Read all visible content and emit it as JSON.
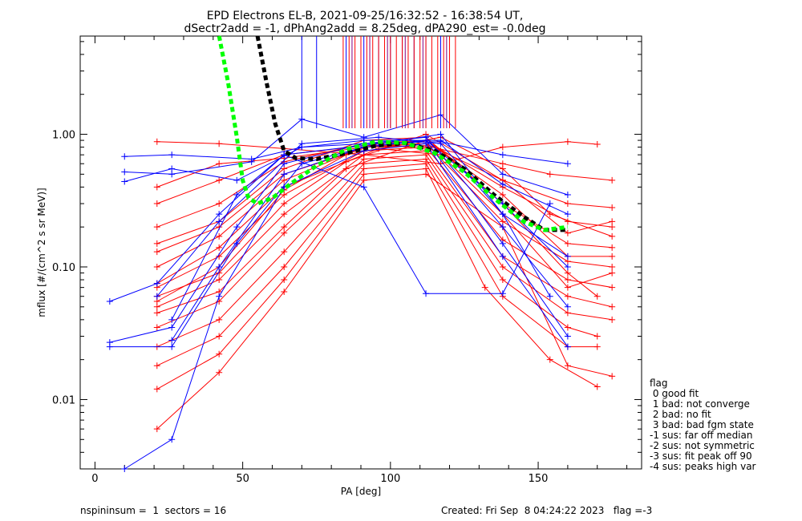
{
  "chart_data": {
    "type": "line",
    "title": "EPD Electrons EL-B, 2021-09-25/16:32:52 - 16:38:54 UT,",
    "subtitle": "dSectr2add = -1, dPhAng2add = 8.25deg, dPA290_est=  -0.0deg",
    "xlabel": "PA [deg]",
    "ylabel": "mflux [#/(cm^2 s sr MeV)]",
    "xlim": [
      -5,
      185
    ],
    "ylim": [
      0.003,
      5.5
    ],
    "yscale": "log",
    "x_ticks": [
      0,
      50,
      100,
      150
    ],
    "x_tick_labels": [
      "0",
      "50",
      "100",
      "150"
    ],
    "y_ticks": [
      0.01,
      0.1,
      1.0
    ],
    "y_tick_labels": [
      "0.01",
      "0.10",
      "1.00"
    ],
    "pa_bins": [
      5,
      10,
      21,
      26,
      42,
      48,
      53,
      64,
      70,
      85,
      91,
      96,
      112,
      117,
      132,
      138,
      154,
      160,
      170,
      175
    ],
    "series": [
      {
        "color": "#ff0000",
        "curves": [
          [
            [
              21,
              0.88
            ],
            [
              42,
              0.85
            ],
            [
              64,
              0.78
            ],
            [
              91,
              0.7
            ],
            [
              117,
              0.6
            ],
            [
              138,
              0.8
            ],
            [
              160,
              0.88
            ],
            [
              170,
              0.84
            ]
          ],
          [
            [
              21,
              0.3
            ],
            [
              42,
              0.45
            ],
            [
              64,
              0.7
            ],
            [
              91,
              0.82
            ],
            [
              112,
              0.85
            ],
            [
              138,
              0.45
            ],
            [
              160,
              0.3
            ],
            [
              175,
              0.28
            ]
          ],
          [
            [
              21,
              0.2
            ],
            [
              42,
              0.3
            ],
            [
              64,
              0.62
            ],
            [
              91,
              0.85
            ],
            [
              112,
              0.9
            ],
            [
              138,
              0.4
            ],
            [
              160,
              0.22
            ],
            [
              175,
              0.2
            ]
          ],
          [
            [
              21,
              0.15
            ],
            [
              42,
              0.22
            ],
            [
              64,
              0.55
            ],
            [
              91,
              0.9
            ],
            [
              112,
              0.95
            ],
            [
              138,
              0.3
            ],
            [
              160,
              0.15
            ],
            [
              175,
              0.14
            ]
          ],
          [
            [
              21,
              0.1
            ],
            [
              42,
              0.17
            ],
            [
              64,
              0.45
            ],
            [
              91,
              0.8
            ],
            [
              112,
              0.85
            ],
            [
              138,
              0.22
            ],
            [
              160,
              0.11
            ],
            [
              175,
              0.1
            ]
          ],
          [
            [
              21,
              0.07
            ],
            [
              42,
              0.12
            ],
            [
              64,
              0.35
            ],
            [
              91,
              0.75
            ],
            [
              112,
              0.8
            ],
            [
              138,
              0.16
            ],
            [
              160,
              0.08
            ],
            [
              175,
              0.07
            ]
          ],
          [
            [
              21,
              0.05
            ],
            [
              42,
              0.08
            ],
            [
              64,
              0.25
            ],
            [
              91,
              0.7
            ],
            [
              112,
              0.75
            ],
            [
              138,
              0.12
            ],
            [
              160,
              0.06
            ],
            [
              175,
              0.05
            ]
          ],
          [
            [
              21,
              0.035
            ],
            [
              42,
              0.055
            ],
            [
              64,
              0.18
            ],
            [
              91,
              0.65
            ],
            [
              112,
              0.7
            ],
            [
              138,
              0.1
            ],
            [
              160,
              0.045
            ],
            [
              175,
              0.04
            ]
          ],
          [
            [
              21,
              0.025
            ],
            [
              42,
              0.04
            ],
            [
              64,
              0.13
            ],
            [
              91,
              0.6
            ],
            [
              112,
              0.65
            ],
            [
              138,
              0.08
            ],
            [
              160,
              0.035
            ],
            [
              170,
              0.03
            ]
          ],
          [
            [
              21,
              0.018
            ],
            [
              42,
              0.03
            ],
            [
              64,
              0.1
            ],
            [
              91,
              0.55
            ],
            [
              112,
              0.6
            ],
            [
              138,
              0.06
            ],
            [
              160,
              0.025
            ],
            [
              170,
              0.025
            ]
          ],
          [
            [
              21,
              0.012
            ],
            [
              42,
              0.022
            ],
            [
              64,
              0.08
            ],
            [
              91,
              0.5
            ],
            [
              112,
              0.55
            ],
            [
              132,
              0.07
            ],
            [
              154,
              0.02
            ],
            [
              170,
              0.0125
            ]
          ],
          [
            [
              21,
              0.006
            ],
            [
              42,
              0.016
            ],
            [
              64,
              0.065
            ],
            [
              91,
              0.45
            ],
            [
              112,
              0.5
            ],
            [
              138,
              0.2
            ],
            [
              160,
              0.018
            ],
            [
              175,
              0.015
            ]
          ],
          [
            [
              21,
              0.045
            ],
            [
              42,
              0.065
            ],
            [
              64,
              0.2
            ],
            [
              85,
              0.55
            ],
            [
              112,
              0.9
            ],
            [
              138,
              0.35
            ],
            [
              160,
              0.12
            ],
            [
              175,
              0.12
            ]
          ],
          [
            [
              21,
              0.06
            ],
            [
              42,
              0.09
            ],
            [
              64,
              0.3
            ],
            [
              85,
              0.62
            ],
            [
              112,
              1.0
            ],
            [
              138,
              0.45
            ],
            [
              160,
              0.18
            ],
            [
              175,
              0.22
            ]
          ],
          [
            [
              21,
              0.055
            ],
            [
              42,
              0.1
            ],
            [
              64,
              0.38
            ],
            [
              85,
              0.7
            ],
            [
              117,
              0.95
            ],
            [
              138,
              0.55
            ],
            [
              154,
              0.25
            ],
            [
              175,
              0.17
            ]
          ],
          [
            [
              21,
              0.4
            ],
            [
              42,
              0.6
            ],
            [
              64,
              0.66
            ],
            [
              91,
              0.8
            ],
            [
              112,
              0.82
            ],
            [
              138,
              0.6
            ],
            [
              154,
              0.5
            ],
            [
              175,
              0.45
            ]
          ],
          [
            [
              21,
              0.13
            ],
            [
              42,
              0.2
            ],
            [
              64,
              0.5
            ],
            [
              96,
              0.85
            ],
            [
              117,
              0.75
            ],
            [
              138,
              0.3
            ],
            [
              160,
              0.09
            ],
            [
              170,
              0.06
            ]
          ],
          [
            [
              21,
              0.075
            ],
            [
              42,
              0.14
            ],
            [
              64,
              0.4
            ],
            [
              96,
              0.78
            ],
            [
              117,
              0.7
            ],
            [
              138,
              0.25
            ],
            [
              160,
              0.07
            ],
            [
              175,
              0.09
            ]
          ]
        ]
      },
      {
        "color": "#0000ff",
        "curves": [
          [
            [
              10,
              0.68
            ],
            [
              26,
              0.7
            ],
            [
              53,
              0.65
            ],
            [
              70,
              0.8
            ],
            [
              91,
              0.85
            ],
            [
              117,
              0.88
            ],
            [
              138,
              0.7
            ],
            [
              160,
              0.6
            ]
          ],
          [
            [
              10,
              0.52
            ],
            [
              26,
              0.5
            ],
            [
              53,
              0.62
            ],
            [
              70,
              1.3
            ],
            [
              91,
              0.95
            ],
            [
              117,
              1.4
            ],
            [
              138,
              0.5
            ],
            [
              160,
              0.35
            ]
          ],
          [
            [
              10,
              0.44
            ],
            [
              26,
              0.55
            ],
            [
              48,
              0.45
            ],
            [
              70,
              0.8
            ],
            [
              91,
              0.9
            ],
            [
              117,
              0.9
            ],
            [
              138,
              0.42
            ],
            [
              160,
              0.25
            ]
          ],
          [
            [
              5,
              0.055
            ],
            [
              21,
              0.075
            ],
            [
              42,
              0.25
            ],
            [
              64,
              0.7
            ],
            [
              96,
              0.85
            ],
            [
              117,
              1.0
            ],
            [
              138,
              0.25
            ],
            [
              154,
              0.06
            ]
          ],
          [
            [
              5,
              0.027
            ],
            [
              26,
              0.035
            ],
            [
              48,
              0.2
            ],
            [
              64,
              0.6
            ],
            [
              91,
              0.85
            ],
            [
              112,
              0.95
            ],
            [
              138,
              0.2
            ],
            [
              160,
              0.05
            ]
          ],
          [
            [
              5,
              0.025
            ],
            [
              26,
              0.025
            ],
            [
              48,
              0.15
            ],
            [
              70,
              0.6
            ],
            [
              91,
              0.8
            ],
            [
              112,
              0.9
            ],
            [
              138,
              0.15
            ],
            [
              160,
              0.03
            ]
          ],
          [
            [
              10,
              0.003
            ],
            [
              26,
              0.005
            ],
            [
              42,
              0.06
            ],
            [
              64,
              0.4
            ],
            [
              91,
              0.75
            ],
            [
              112,
              0.85
            ],
            [
              138,
              0.12
            ],
            [
              160,
              0.025
            ]
          ],
          [
            [
              26,
              0.028
            ],
            [
              42,
              0.1
            ],
            [
              64,
              0.5
            ],
            [
              91,
              0.8
            ],
            [
              112,
              0.9
            ],
            [
              138,
              0.3
            ],
            [
              160,
              0.1
            ]
          ],
          [
            [
              26,
              0.04
            ],
            [
              48,
              0.35
            ],
            [
              64,
              0.7
            ],
            [
              91,
              0.4
            ],
            [
              112,
              0.063
            ],
            [
              138,
              0.063
            ],
            [
              154,
              0.3
            ]
          ],
          [
            [
              21,
              0.06
            ],
            [
              42,
              0.22
            ],
            [
              70,
              0.85
            ],
            [
              96,
              0.95
            ],
            [
              117,
              0.85
            ],
            [
              138,
              0.25
            ],
            [
              160,
              0.12
            ]
          ]
        ]
      }
    ],
    "spikes": [
      {
        "color": "#0000ff",
        "pa": [
          70,
          75,
          85,
          91,
          96,
          100,
          104,
          108,
          112,
          117
        ]
      },
      {
        "color": "#ff0000",
        "pa": [
          84,
          86,
          88,
          90,
          92,
          94,
          96,
          98,
          100,
          102,
          104,
          106,
          108,
          110,
          112,
          114,
          116,
          118,
          120,
          122
        ]
      },
      {
        "color": "#800080",
        "pa": [
          87,
          93,
          99,
          105,
          111,
          119
        ]
      }
    ],
    "fit_curves": [
      {
        "color": "#000000",
        "style": "dashed",
        "points": [
          [
            55,
            5.5
          ],
          [
            58,
            2.5
          ],
          [
            61,
            1.2
          ],
          [
            64,
            0.75
          ],
          [
            68,
            0.66
          ],
          [
            75,
            0.65
          ],
          [
            85,
            0.72
          ],
          [
            95,
            0.82
          ],
          [
            105,
            0.86
          ],
          [
            115,
            0.75
          ],
          [
            125,
            0.55
          ],
          [
            135,
            0.35
          ],
          [
            145,
            0.24
          ],
          [
            152,
            0.19
          ],
          [
            160,
            0.19
          ]
        ]
      },
      {
        "color": "#00ff00",
        "style": "dashed",
        "points": [
          [
            42,
            5.5
          ],
          [
            45,
            2.5
          ],
          [
            48,
            0.95
          ],
          [
            50,
            0.45
          ],
          [
            52,
            0.33
          ],
          [
            55,
            0.3
          ],
          [
            60,
            0.33
          ],
          [
            66,
            0.42
          ],
          [
            75,
            0.58
          ],
          [
            85,
            0.77
          ],
          [
            95,
            0.88
          ],
          [
            105,
            0.86
          ],
          [
            115,
            0.72
          ],
          [
            125,
            0.52
          ],
          [
            135,
            0.33
          ],
          [
            145,
            0.22
          ],
          [
            152,
            0.19
          ],
          [
            160,
            0.2
          ]
        ]
      }
    ],
    "legend": {
      "position": "right",
      "title": "flag",
      "entries": [
        " 0 good fit",
        " 1 bad: not converge",
        " 2 bad: no fit",
        " 3 bad: bad fgm state",
        "-1 sus: far off median",
        "-2 sus: not symmetric",
        "-3 sus: fit peak off 90",
        "-4 sus: peaks high var"
      ]
    }
  },
  "footer": {
    "left": "nspininsum =  1  sectors = 16",
    "right": "Created: Fri Sep  8 04:24:22 2023   flag =-3"
  }
}
